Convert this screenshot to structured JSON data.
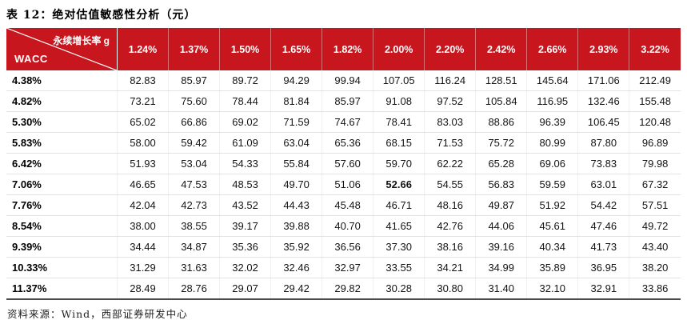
{
  "page": {
    "title": "表 12：绝对估值敏感性分析（元）",
    "source_note": "资料来源：Wind，西部证券研发中心"
  },
  "colors": {
    "header_red": "#C8161E",
    "bottom_rule": "#4a4a4a"
  },
  "table": {
    "corner": {
      "top_label": "永续增长率 g",
      "bottom_label": "WACC"
    },
    "growth_headers": [
      "1.24%",
      "1.37%",
      "1.50%",
      "1.65%",
      "1.82%",
      "2.00%",
      "2.20%",
      "2.42%",
      "2.66%",
      "2.93%",
      "3.22%"
    ],
    "rows": [
      {
        "wacc": "4.38%",
        "values": [
          "82.83",
          "85.97",
          "89.72",
          "94.29",
          "99.94",
          "107.05",
          "116.24",
          "128.51",
          "145.64",
          "171.06",
          "212.49"
        ]
      },
      {
        "wacc": "4.82%",
        "values": [
          "73.21",
          "75.60",
          "78.44",
          "81.84",
          "85.97",
          "91.08",
          "97.52",
          "105.84",
          "116.95",
          "132.46",
          "155.48"
        ]
      },
      {
        "wacc": "5.30%",
        "values": [
          "65.02",
          "66.86",
          "69.02",
          "71.59",
          "74.67",
          "78.41",
          "83.03",
          "88.86",
          "96.39",
          "106.45",
          "120.48"
        ]
      },
      {
        "wacc": "5.83%",
        "values": [
          "58.00",
          "59.42",
          "61.09",
          "63.04",
          "65.36",
          "68.15",
          "71.53",
          "75.72",
          "80.99",
          "87.80",
          "96.89"
        ]
      },
      {
        "wacc": "6.42%",
        "values": [
          "51.93",
          "53.04",
          "54.33",
          "55.84",
          "57.60",
          "59.70",
          "62.22",
          "65.28",
          "69.06",
          "73.83",
          "79.98"
        ]
      },
      {
        "wacc": "7.06%",
        "values": [
          "46.65",
          "47.53",
          "48.53",
          "49.70",
          "51.06",
          "52.66",
          "54.55",
          "56.83",
          "59.59",
          "63.01",
          "67.32"
        ]
      },
      {
        "wacc": "7.76%",
        "values": [
          "42.04",
          "42.73",
          "43.52",
          "44.43",
          "45.48",
          "46.71",
          "48.16",
          "49.87",
          "51.92",
          "54.42",
          "57.51"
        ]
      },
      {
        "wacc": "8.54%",
        "values": [
          "38.00",
          "38.55",
          "39.17",
          "39.88",
          "40.70",
          "41.65",
          "42.76",
          "44.06",
          "45.61",
          "47.46",
          "49.72"
        ]
      },
      {
        "wacc": "9.39%",
        "values": [
          "34.44",
          "34.87",
          "35.36",
          "35.92",
          "36.56",
          "37.30",
          "38.16",
          "39.16",
          "40.34",
          "41.73",
          "43.40"
        ]
      },
      {
        "wacc": "10.33%",
        "values": [
          "31.29",
          "31.63",
          "32.02",
          "32.46",
          "32.97",
          "33.55",
          "34.21",
          "34.99",
          "35.89",
          "36.95",
          "38.20"
        ]
      },
      {
        "wacc": "11.37%",
        "values": [
          "28.49",
          "28.76",
          "29.07",
          "29.42",
          "29.82",
          "30.28",
          "30.80",
          "31.40",
          "32.10",
          "32.91",
          "33.86"
        ]
      }
    ],
    "bold_cell": {
      "row_index": 5,
      "col_index": 5
    }
  }
}
